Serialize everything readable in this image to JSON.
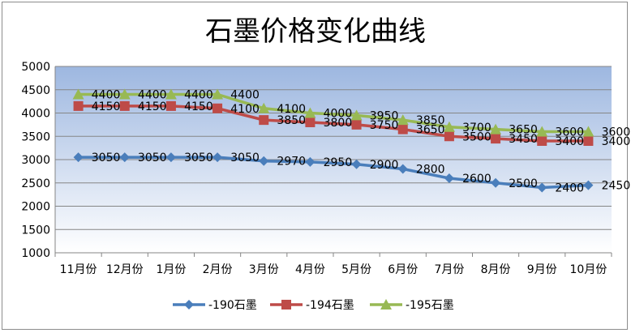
{
  "chart_data": {
    "type": "line",
    "title": "石墨价格变化曲线",
    "xlabel": "",
    "ylabel": "",
    "categories": [
      "11月份",
      "12月份",
      "1月份",
      "2月份",
      "3月份",
      "4月份",
      "5月份",
      "6月份",
      "7月份",
      "8月份",
      "9月份",
      "10月份"
    ],
    "ylim": [
      1000,
      5000
    ],
    "yticks": [
      1000,
      1500,
      2000,
      2500,
      3000,
      3500,
      4000,
      4500,
      5000
    ],
    "grid": true,
    "legend_position": "bottom",
    "series": [
      {
        "name": "-190石墨",
        "color": "#4a7ebb",
        "marker": "diamond",
        "values": [
          3050,
          3050,
          3050,
          3050,
          2970,
          2950,
          2900,
          2800,
          2600,
          2500,
          2400,
          2450
        ]
      },
      {
        "name": "-194石墨",
        "color": "#be4b48",
        "marker": "square",
        "values": [
          4150,
          4150,
          4150,
          4100,
          3850,
          3800,
          3750,
          3650,
          3500,
          3450,
          3400,
          3400
        ]
      },
      {
        "name": "-195石墨",
        "color": "#98b954",
        "marker": "triangle",
        "values": [
          4400,
          4400,
          4400,
          4400,
          4100,
          4000,
          3950,
          3850,
          3700,
          3650,
          3600,
          3600
        ]
      }
    ]
  }
}
